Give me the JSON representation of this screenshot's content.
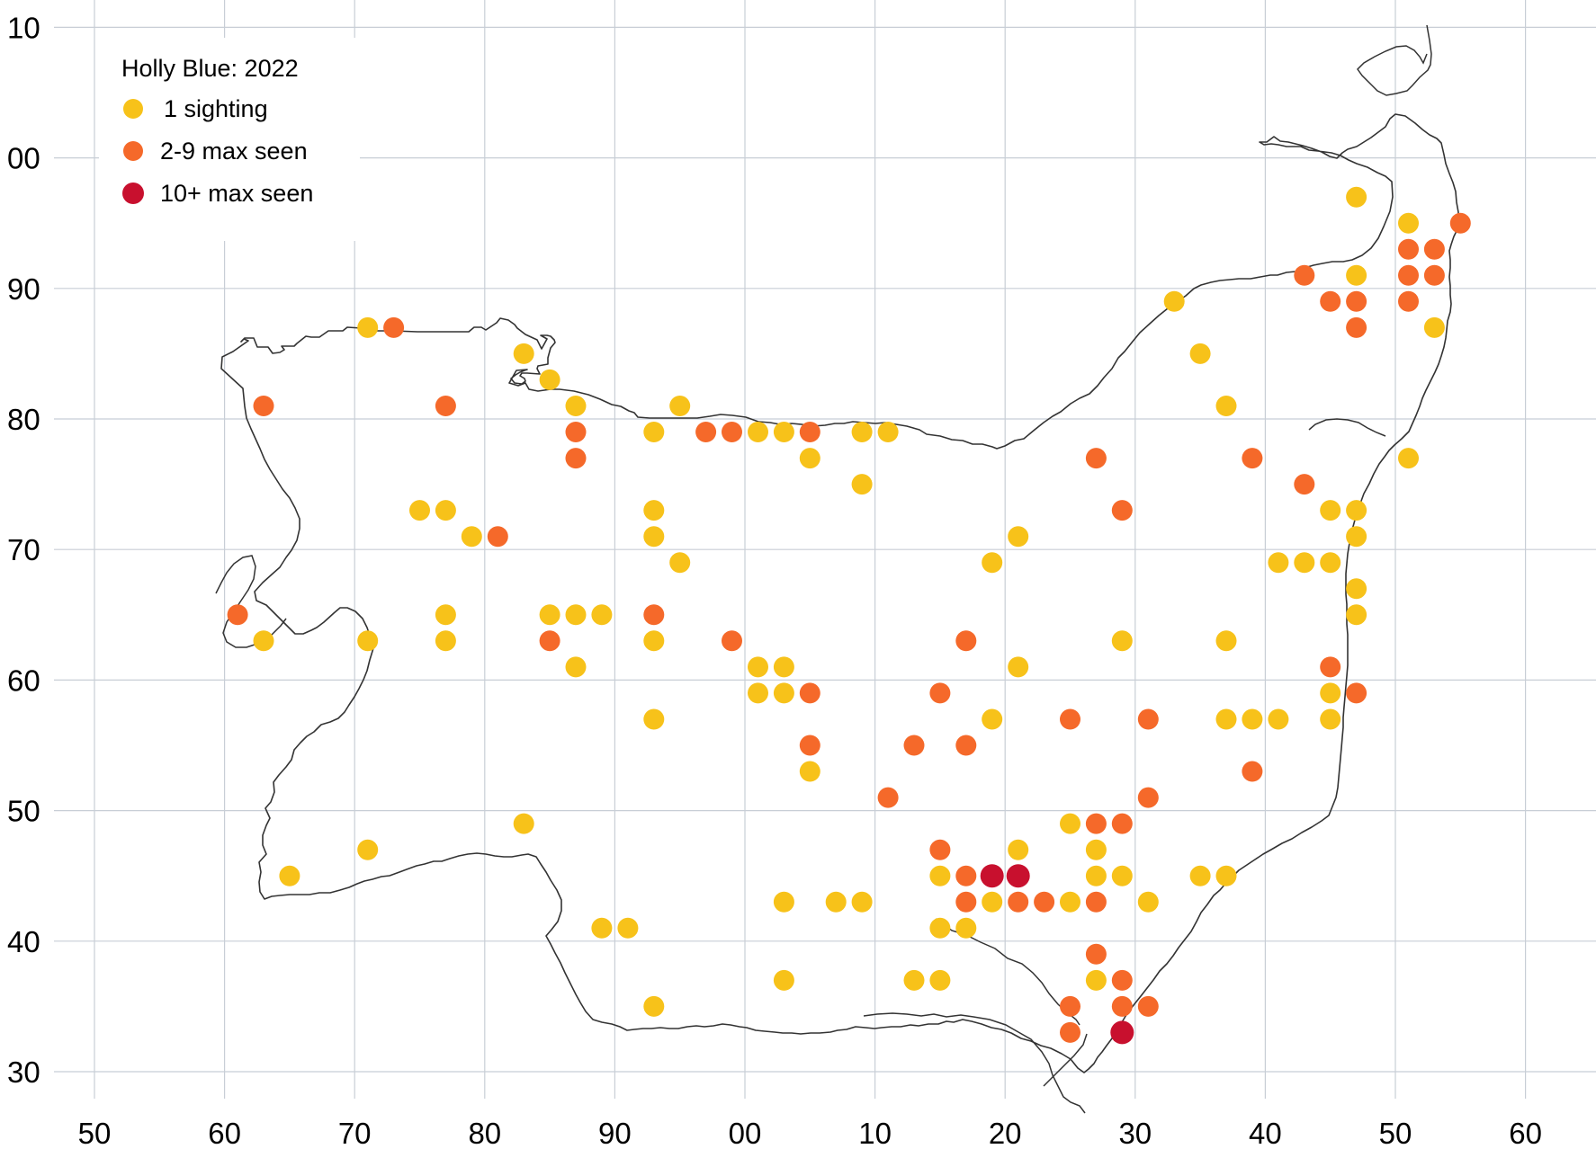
{
  "legend": {
    "title": "Holly Blue:  2022",
    "items": [
      {
        "label": "1 sighting",
        "color": "#f7c21a",
        "category": "single"
      },
      {
        "label": "2-9 max seen",
        "color": "#f5692a",
        "category": "few"
      },
      {
        "label": "10+ max seen",
        "color": "#c8102e",
        "category": "many"
      }
    ]
  },
  "axes": {
    "x_ticks": [
      "50",
      "60",
      "70",
      "80",
      "90",
      "00",
      "10",
      "20",
      "30",
      "40",
      "50",
      "60"
    ],
    "y_ticks": [
      "10",
      "00",
      "90",
      "80",
      "70",
      "60",
      "50",
      "40",
      "30"
    ],
    "grid": true
  },
  "colors": {
    "single": "#f7c21a",
    "few": "#f5692a",
    "many": "#c8102e",
    "grid": "#c8ced6",
    "outline": "#333333"
  },
  "chart_data": {
    "type": "scatter",
    "x_range": [
      50,
      162
    ],
    "y_range": [
      30,
      110
    ],
    "note_units": "grid kilometre eastings and northings",
    "series": [
      {
        "name": "1 sighting",
        "category": "single",
        "points": [
          [
            71,
            87
          ],
          [
            83,
            85
          ],
          [
            85,
            83
          ],
          [
            87,
            81
          ],
          [
            95,
            81
          ],
          [
            93,
            79
          ],
          [
            101,
            79
          ],
          [
            103,
            79
          ],
          [
            109,
            79
          ],
          [
            111,
            79
          ],
          [
            105,
            77
          ],
          [
            109,
            75
          ],
          [
            75,
            73
          ],
          [
            77,
            73
          ],
          [
            79,
            71
          ],
          [
            93,
            73
          ],
          [
            93,
            71
          ],
          [
            95,
            69
          ],
          [
            85,
            65
          ],
          [
            87,
            65
          ],
          [
            89,
            65
          ],
          [
            77,
            65
          ],
          [
            77,
            63
          ],
          [
            71,
            63
          ],
          [
            63,
            63
          ],
          [
            87,
            61
          ],
          [
            93,
            63
          ],
          [
            101,
            61
          ],
          [
            103,
            61
          ],
          [
            101,
            59
          ],
          [
            103,
            59
          ],
          [
            93,
            57
          ],
          [
            105,
            53
          ],
          [
            83,
            49
          ],
          [
            71,
            47
          ],
          [
            65,
            45
          ],
          [
            89,
            41
          ],
          [
            91,
            41
          ],
          [
            93,
            35
          ],
          [
            103,
            37
          ],
          [
            103,
            43
          ],
          [
            107,
            43
          ],
          [
            109,
            43
          ],
          [
            113,
            37
          ],
          [
            115,
            37
          ],
          [
            115,
            41
          ],
          [
            117,
            41
          ],
          [
            115,
            45
          ],
          [
            119,
            43
          ],
          [
            121,
            47
          ],
          [
            119,
            57
          ],
          [
            121,
            61
          ],
          [
            121,
            71
          ],
          [
            119,
            69
          ],
          [
            125,
            49
          ],
          [
            127,
            47
          ],
          [
            127,
            45
          ],
          [
            125,
            43
          ],
          [
            129,
            45
          ],
          [
            131,
            43
          ],
          [
            127,
            37
          ],
          [
            129,
            63
          ],
          [
            133,
            89
          ],
          [
            135,
            85
          ],
          [
            137,
            81
          ],
          [
            137,
            63
          ],
          [
            137,
            57
          ],
          [
            139,
            57
          ],
          [
            141,
            57
          ],
          [
            141,
            69
          ],
          [
            143,
            69
          ],
          [
            145,
            69
          ],
          [
            145,
            73
          ],
          [
            147,
            73
          ],
          [
            147,
            71
          ],
          [
            147,
            67
          ],
          [
            147,
            65
          ],
          [
            145,
            59
          ],
          [
            145,
            57
          ],
          [
            135,
            45
          ],
          [
            137,
            45
          ],
          [
            147,
            97
          ],
          [
            147,
            91
          ],
          [
            151,
            95
          ],
          [
            153,
            87
          ],
          [
            151,
            77
          ]
        ]
      },
      {
        "name": "2-9 max seen",
        "category": "few",
        "points": [
          [
            73,
            87
          ],
          [
            63,
            81
          ],
          [
            77,
            81
          ],
          [
            87,
            79
          ],
          [
            87,
            77
          ],
          [
            97,
            79
          ],
          [
            99,
            79
          ],
          [
            105,
            79
          ],
          [
            81,
            71
          ],
          [
            61,
            65
          ],
          [
            85,
            63
          ],
          [
            93,
            65
          ],
          [
            99,
            63
          ],
          [
            105,
            59
          ],
          [
            105,
            55
          ],
          [
            111,
            51
          ],
          [
            113,
            55
          ],
          [
            115,
            59
          ],
          [
            117,
            55
          ],
          [
            117,
            63
          ],
          [
            115,
            47
          ],
          [
            117,
            45
          ],
          [
            117,
            43
          ],
          [
            121,
            43
          ],
          [
            123,
            43
          ],
          [
            125,
            57
          ],
          [
            127,
            43
          ],
          [
            127,
            49
          ],
          [
            129,
            49
          ],
          [
            127,
            39
          ],
          [
            129,
            37
          ],
          [
            129,
            35
          ],
          [
            131,
            35
          ],
          [
            125,
            35
          ],
          [
            125,
            33
          ],
          [
            131,
            51
          ],
          [
            131,
            57
          ],
          [
            129,
            73
          ],
          [
            127,
            77
          ],
          [
            139,
            77
          ],
          [
            139,
            53
          ],
          [
            143,
            75
          ],
          [
            145,
            61
          ],
          [
            147,
            59
          ],
          [
            143,
            91
          ],
          [
            145,
            89
          ],
          [
            147,
            89
          ],
          [
            147,
            87
          ],
          [
            151,
            93
          ],
          [
            153,
            93
          ],
          [
            151,
            91
          ],
          [
            153,
            91
          ],
          [
            151,
            89
          ],
          [
            155,
            95
          ]
        ]
      },
      {
        "name": "10+ max seen",
        "category": "many",
        "points": [
          [
            119,
            45
          ],
          [
            121,
            45
          ],
          [
            129,
            33
          ]
        ]
      }
    ]
  }
}
